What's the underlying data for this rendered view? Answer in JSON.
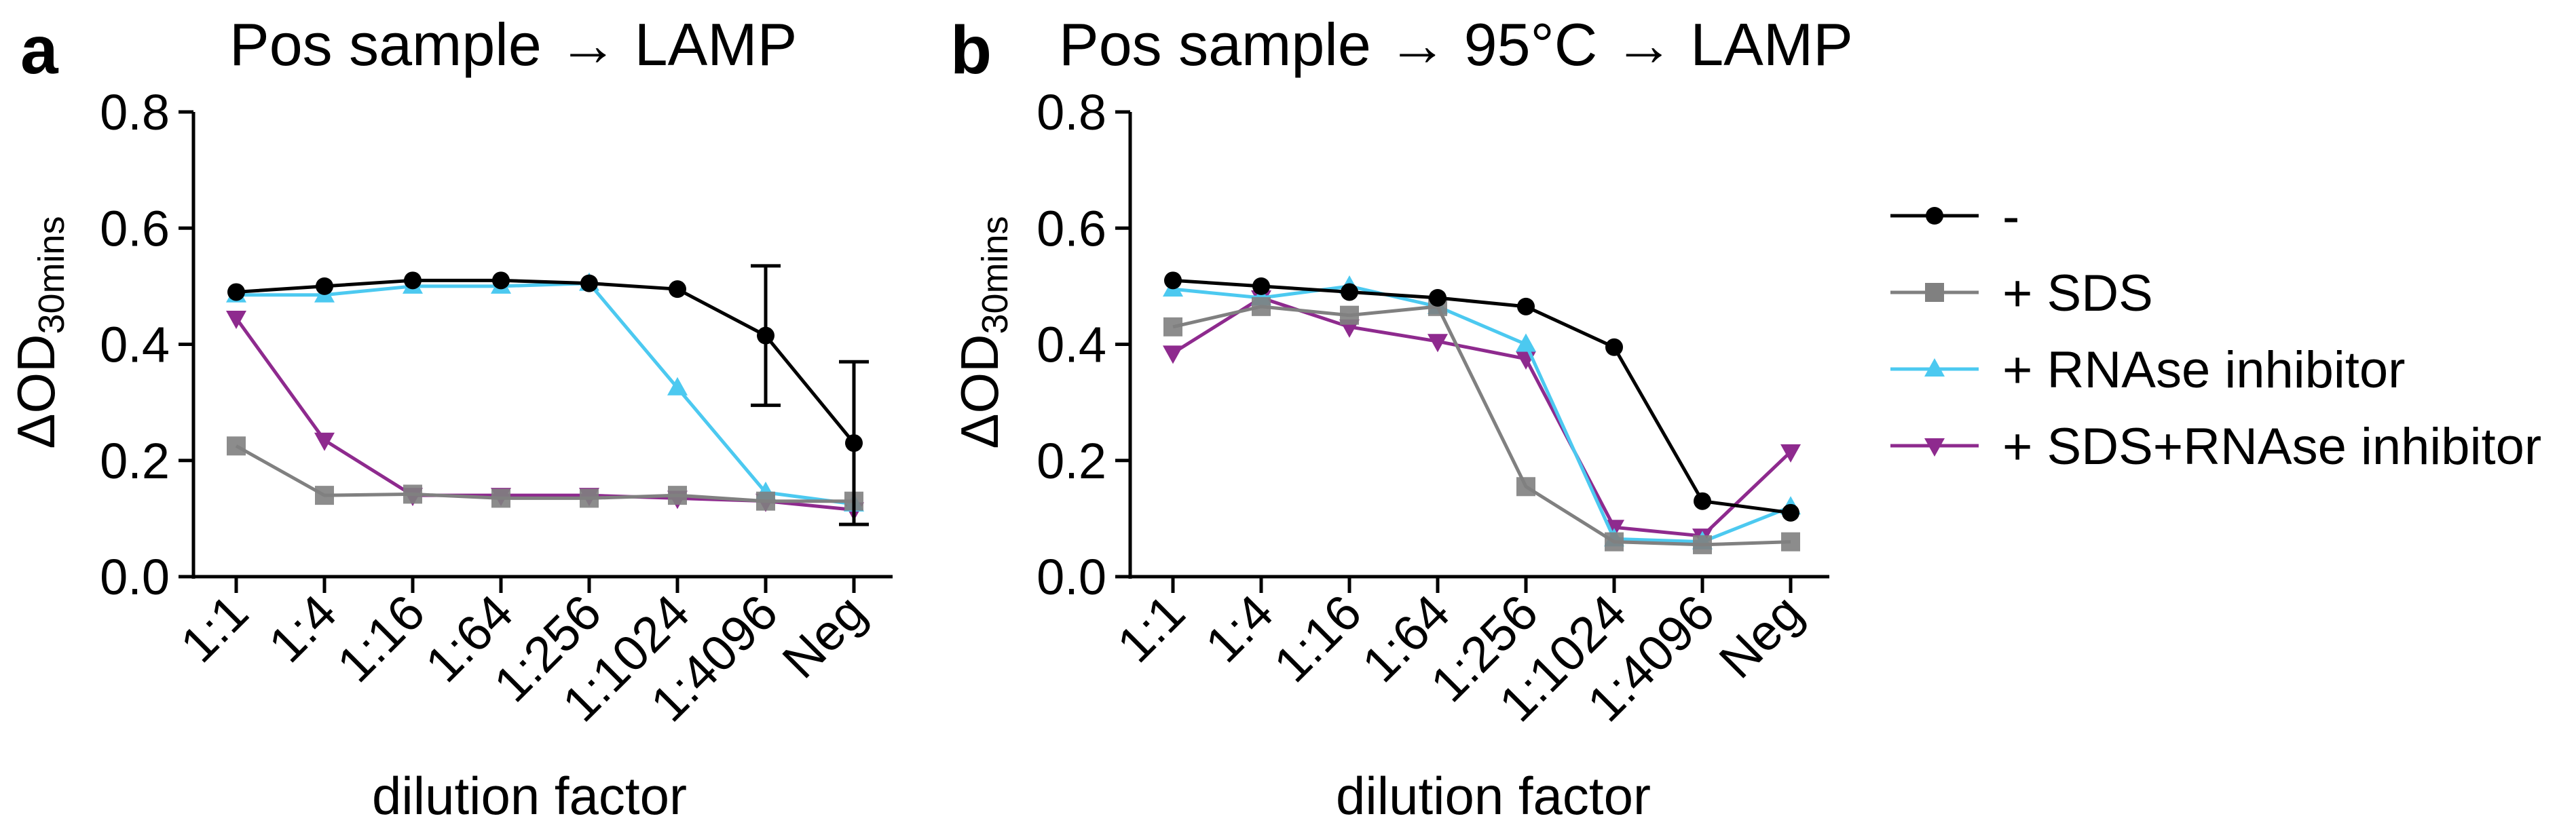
{
  "panels": [
    {
      "letter": "a",
      "title": "Pos sample → LAMP"
    },
    {
      "letter": "b",
      "title": "Pos sample → 95°C → LAMP"
    }
  ],
  "axis": {
    "ylabel_main": "ΔOD",
    "ylabel_sub": "30mins",
    "xlabel": "dilution factor",
    "yticks": [
      "0.0",
      "0.2",
      "0.4",
      "0.6",
      "0.8"
    ]
  },
  "legend": [
    {
      "label": "-",
      "color": "#000000",
      "marker": "circle"
    },
    {
      "label": "+ SDS",
      "color": "#808080",
      "marker": "square"
    },
    {
      "label": "+ RNAse inhibitor",
      "color": "#4cc9f0",
      "marker": "triangle-up"
    },
    {
      "label": "+ SDS+RNAse inhibitor",
      "color": "#8e2a8e",
      "marker": "triangle-down"
    }
  ],
  "chart_data": [
    {
      "type": "line",
      "title": "Pos sample → LAMP",
      "xlabel": "dilution factor",
      "ylabel": "ΔOD30mins",
      "ylim": [
        0,
        0.8
      ],
      "categories": [
        "1:1",
        "1:4",
        "1:16",
        "1:64",
        "1:256",
        "1:1024",
        "1:4096",
        "Neg"
      ],
      "series": [
        {
          "name": "-",
          "color": "#000000",
          "marker": "circle",
          "values": [
            0.49,
            0.5,
            0.51,
            0.51,
            0.505,
            0.495,
            0.415,
            0.23
          ],
          "error": [
            null,
            null,
            null,
            null,
            null,
            null,
            0.12,
            0.14
          ]
        },
        {
          "name": "+ SDS",
          "color": "#808080",
          "marker": "square",
          "values": [
            0.225,
            0.14,
            0.142,
            0.135,
            0.135,
            0.14,
            0.13,
            0.13
          ]
        },
        {
          "name": "+ RNAse inhibitor",
          "color": "#4cc9f0",
          "marker": "triangle-up",
          "values": [
            0.485,
            0.485,
            0.5,
            0.5,
            0.505,
            0.325,
            0.145,
            0.125
          ]
        },
        {
          "name": "+ SDS+RNAse inhibitor",
          "color": "#8e2a8e",
          "marker": "triangle-down",
          "values": [
            0.445,
            0.235,
            0.14,
            0.14,
            0.14,
            0.135,
            0.13,
            0.115
          ]
        }
      ]
    },
    {
      "type": "line",
      "title": "Pos sample → 95°C → LAMP",
      "xlabel": "dilution factor",
      "ylabel": "ΔOD30mins",
      "ylim": [
        0,
        0.8
      ],
      "categories": [
        "1:1",
        "1:4",
        "1:16",
        "1:64",
        "1:256",
        "1:1024",
        "1:4096",
        "Neg"
      ],
      "series": [
        {
          "name": "-",
          "color": "#000000",
          "marker": "circle",
          "values": [
            0.51,
            0.5,
            0.49,
            0.48,
            0.465,
            0.395,
            0.13,
            0.11
          ]
        },
        {
          "name": "+ SDS",
          "color": "#808080",
          "marker": "square",
          "values": [
            0.43,
            0.465,
            0.45,
            0.465,
            0.155,
            0.06,
            0.055,
            0.06
          ]
        },
        {
          "name": "+ RNAse inhibitor",
          "color": "#4cc9f0",
          "marker": "triangle-up",
          "values": [
            0.495,
            0.48,
            0.5,
            0.465,
            0.4,
            0.065,
            0.06,
            0.12
          ]
        },
        {
          "name": "+ SDS+RNAse inhibitor",
          "color": "#8e2a8e",
          "marker": "triangle-down",
          "values": [
            0.385,
            0.48,
            0.43,
            0.405,
            0.375,
            0.085,
            0.07,
            0.215
          ]
        }
      ]
    }
  ]
}
